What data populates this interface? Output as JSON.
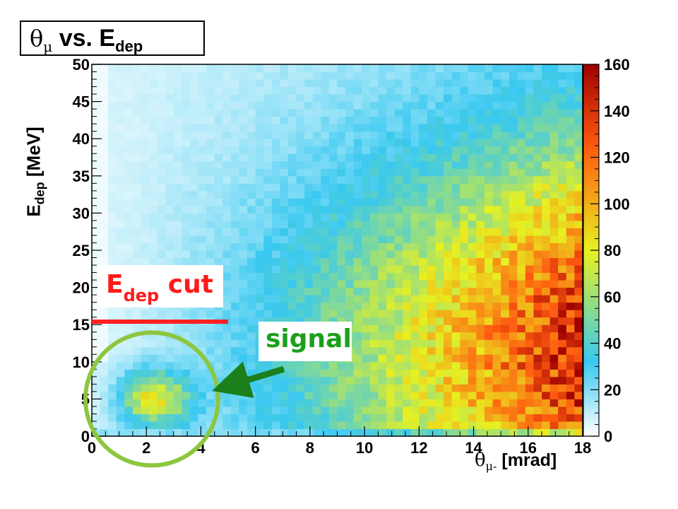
{
  "title": {
    "symbol": "θ",
    "symbol_sub": "μ",
    "text": " vs. E",
    "text_sub": "dep"
  },
  "annotations": {
    "cut_label": {
      "main": "E",
      "sub": "dep",
      "tail": " cut"
    },
    "signal_label": "signal"
  },
  "colors": {
    "cut_line": "#ff2020",
    "signal_circle": "#8dc63f",
    "signal_arrow": "#1b7f1b",
    "cut_text": "#ff1a1a",
    "signal_text": "#1aa01a"
  },
  "chart_data": {
    "type": "heatmap",
    "title": "θμ vs. Edep",
    "xlabel": "θμ- [mrad]",
    "ylabel": "Edep [MeV]",
    "xlim": [
      0,
      18
    ],
    "ylim": [
      0,
      50
    ],
    "zlim": [
      0,
      160
    ],
    "x_ticks": [
      "0",
      "2",
      "4",
      "6",
      "8",
      "10",
      "12",
      "14",
      "16",
      "18"
    ],
    "y_ticks": [
      "0",
      "5",
      "10",
      "15",
      "20",
      "25",
      "30",
      "35",
      "40",
      "45",
      "50"
    ],
    "z_ticks": [
      "0",
      "20",
      "40",
      "60",
      "80",
      "100",
      "120",
      "140",
      "160"
    ],
    "colorscale": [
      "#ffffff",
      "#38c8f0",
      "#e8f020",
      "#ff5a10",
      "#a00000"
    ],
    "cut_line": {
      "y": 15.4,
      "x_range": [
        0,
        5
      ]
    },
    "signal_region": {
      "x_center": 2.2,
      "y_center": 5,
      "description": "signal"
    },
    "features": [
      {
        "name": "signal blob",
        "x": 2.3,
        "y": 5,
        "value": 75
      },
      {
        "name": "main peak",
        "x": 15.5,
        "y": 12,
        "value": 145
      }
    ]
  }
}
